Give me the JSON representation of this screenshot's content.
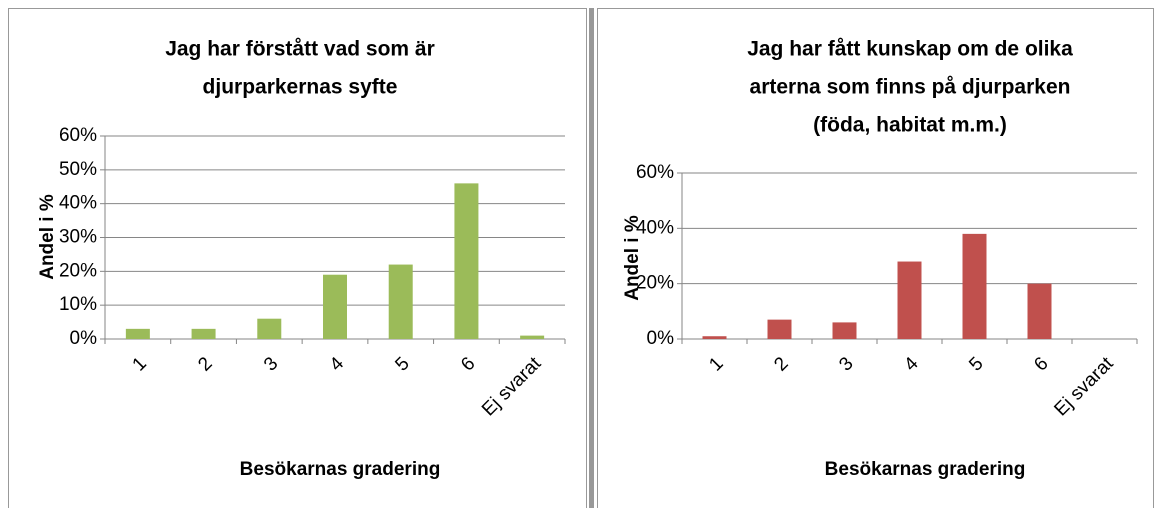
{
  "chart_data": [
    {
      "type": "bar",
      "title": [
        "Jag har förstått vad som är",
        "djurparkernas syfte"
      ],
      "x_label": "Besökarnas gradering",
      "y_label": "Andel i %",
      "categories": [
        "1",
        "2",
        "3",
        "4",
        "5",
        "6",
        "Ej svarat"
      ],
      "values": [
        3,
        3,
        6,
        19,
        22,
        46,
        1
      ],
      "color": "#9bbb59",
      "ylim": [
        0,
        60
      ],
      "yticks": [
        {
          "value": 0,
          "label": "0%"
        },
        {
          "value": 10,
          "label": "10%"
        },
        {
          "value": 20,
          "label": "20%"
        },
        {
          "value": 30,
          "label": "30%"
        },
        {
          "value": 40,
          "label": "40%"
        },
        {
          "value": 50,
          "label": "50%"
        },
        {
          "value": 60,
          "label": "60%"
        }
      ],
      "grid": true
    },
    {
      "type": "bar",
      "title": [
        "Jag har fått kunskap om de olika",
        "arterna som finns på djurparken",
        "(föda, habitat m.m.)"
      ],
      "x_label": "Besökarnas gradering",
      "y_label": "Andel i %",
      "categories": [
        "1",
        "2",
        "3",
        "4",
        "5",
        "6",
        "Ej svarat"
      ],
      "values": [
        1,
        7,
        6,
        28,
        38,
        20,
        0
      ],
      "color": "#c0504d",
      "ylim": [
        0,
        60
      ],
      "yticks": [
        {
          "value": 0,
          "label": "0%"
        },
        {
          "value": 20,
          "label": "20%"
        },
        {
          "value": 40,
          "label": "40%"
        },
        {
          "value": 60,
          "label": "60%"
        }
      ],
      "grid": true
    }
  ]
}
